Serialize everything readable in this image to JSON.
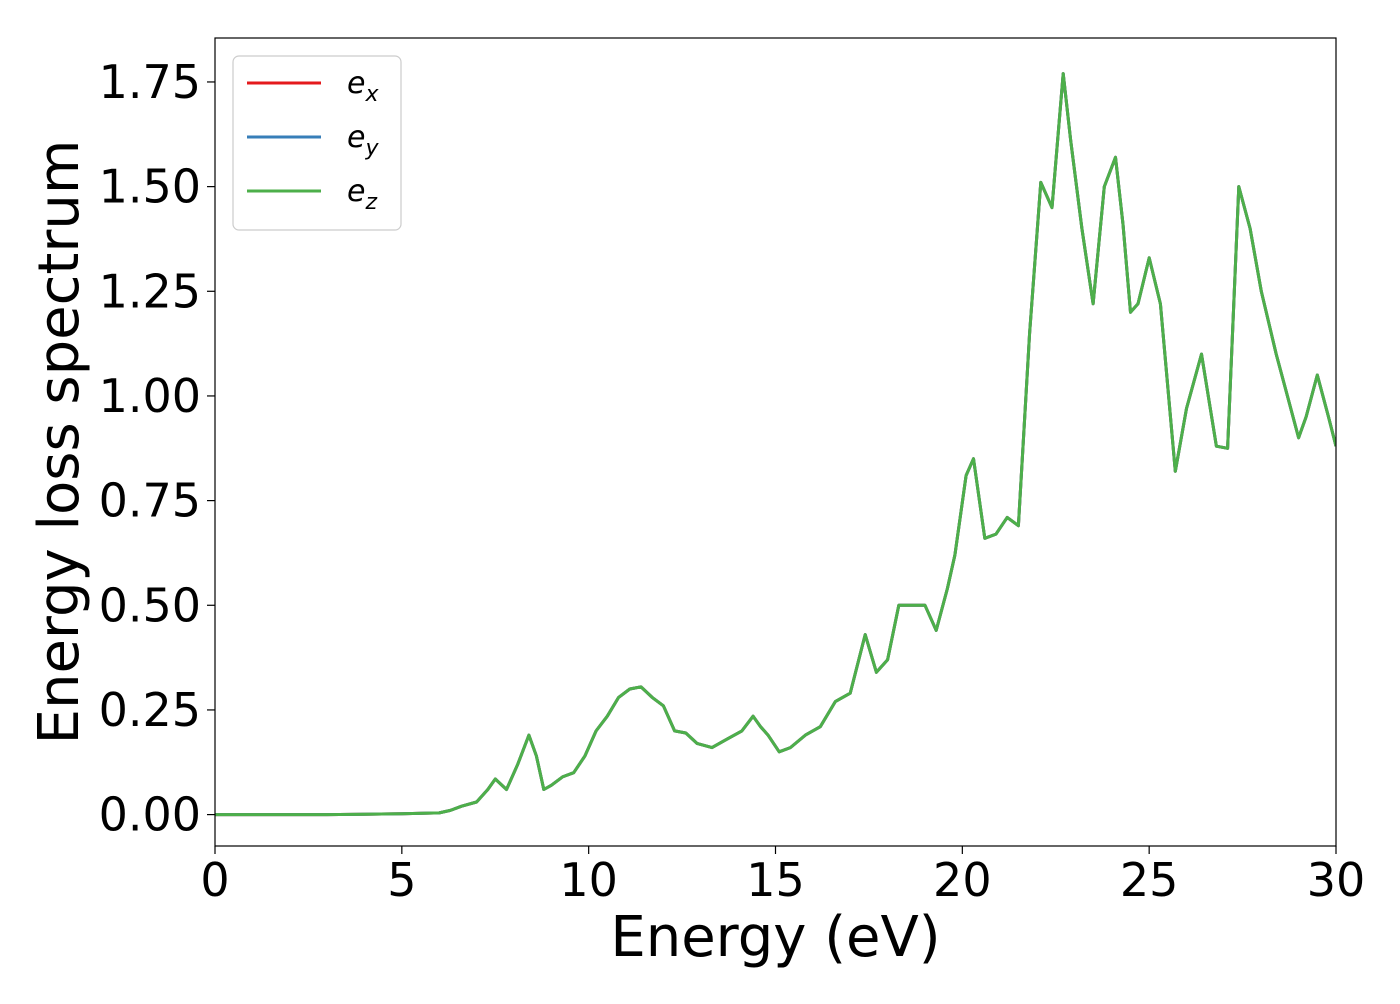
{
  "chart_data": {
    "type": "line",
    "title": "",
    "xlabel": "Energy (eV)",
    "ylabel": "Energy loss spectrum",
    "xlim": [
      0,
      30
    ],
    "ylim": [
      -0.075,
      1.855
    ],
    "xticks": [
      0,
      5,
      10,
      15,
      20,
      25,
      30
    ],
    "xtick_labels": [
      "0",
      "5",
      "10",
      "15",
      "20",
      "25",
      "30"
    ],
    "yticks": [
      0.0,
      0.25,
      0.5,
      0.75,
      1.0,
      1.25,
      1.5,
      1.75
    ],
    "ytick_labels": [
      "0.00",
      "0.25",
      "0.50",
      "0.75",
      "1.00",
      "1.25",
      "1.50",
      "1.75"
    ],
    "grid": false,
    "legend_position": "top-left",
    "x": [
      0,
      1,
      2,
      3,
      4,
      5,
      6,
      6.3,
      6.6,
      7.0,
      7.3,
      7.5,
      7.8,
      8.1,
      8.4,
      8.6,
      8.8,
      9.0,
      9.3,
      9.6,
      9.9,
      10.2,
      10.5,
      10.8,
      11.1,
      11.4,
      11.7,
      12.0,
      12.3,
      12.6,
      12.9,
      13.3,
      13.7,
      14.1,
      14.4,
      14.6,
      14.8,
      15.1,
      15.4,
      15.8,
      16.2,
      16.6,
      17.0,
      17.4,
      17.7,
      18.0,
      18.3,
      18.5,
      18.8,
      19.0,
      19.3,
      19.6,
      19.8,
      20.1,
      20.3,
      20.6,
      20.9,
      21.2,
      21.5,
      21.8,
      22.1,
      22.4,
      22.7,
      22.9,
      23.2,
      23.5,
      23.8,
      24.1,
      24.3,
      24.5,
      24.7,
      25.0,
      25.3,
      25.7,
      26.0,
      26.4,
      26.8,
      27.1,
      27.4,
      27.7,
      28.0,
      28.4,
      28.7,
      29.0,
      29.2,
      29.5,
      29.8,
      30.0
    ],
    "series": [
      {
        "name": "e_x",
        "label_main": "e",
        "label_sub": "x",
        "color": "#e41a1c",
        "values": [
          0,
          0,
          0,
          0,
          0.001,
          0.002,
          0.004,
          0.01,
          0.02,
          0.03,
          0.06,
          0.085,
          0.06,
          0.12,
          0.19,
          0.14,
          0.06,
          0.07,
          0.09,
          0.1,
          0.14,
          0.2,
          0.235,
          0.28,
          0.3,
          0.305,
          0.28,
          0.26,
          0.2,
          0.195,
          0.17,
          0.16,
          0.18,
          0.2,
          0.235,
          0.21,
          0.19,
          0.15,
          0.16,
          0.19,
          0.21,
          0.27,
          0.29,
          0.43,
          0.34,
          0.37,
          0.5,
          0.5,
          0.5,
          0.5,
          0.44,
          0.54,
          0.62,
          0.81,
          0.85,
          0.66,
          0.67,
          0.71,
          0.69,
          1.15,
          1.51,
          1.45,
          1.77,
          1.61,
          1.4,
          1.22,
          1.5,
          1.57,
          1.41,
          1.2,
          1.22,
          1.33,
          1.22,
          0.82,
          0.97,
          1.1,
          0.88,
          0.875,
          1.5,
          1.4,
          1.25,
          1.1,
          1.0,
          0.9,
          0.95,
          1.05,
          0.95,
          0.88
        ]
      },
      {
        "name": "e_y",
        "label_main": "e",
        "label_sub": "y",
        "color": "#377eb8",
        "values": [
          0,
          0,
          0,
          0,
          0.001,
          0.002,
          0.004,
          0.01,
          0.02,
          0.03,
          0.06,
          0.085,
          0.06,
          0.12,
          0.19,
          0.14,
          0.06,
          0.07,
          0.09,
          0.1,
          0.14,
          0.2,
          0.235,
          0.28,
          0.3,
          0.305,
          0.28,
          0.26,
          0.2,
          0.195,
          0.17,
          0.16,
          0.18,
          0.2,
          0.235,
          0.21,
          0.19,
          0.15,
          0.16,
          0.19,
          0.21,
          0.27,
          0.29,
          0.43,
          0.34,
          0.37,
          0.5,
          0.5,
          0.5,
          0.5,
          0.44,
          0.54,
          0.62,
          0.81,
          0.85,
          0.66,
          0.67,
          0.71,
          0.69,
          1.15,
          1.51,
          1.45,
          1.77,
          1.61,
          1.4,
          1.22,
          1.5,
          1.57,
          1.41,
          1.2,
          1.22,
          1.33,
          1.22,
          0.82,
          0.97,
          1.1,
          0.88,
          0.875,
          1.5,
          1.4,
          1.25,
          1.1,
          1.0,
          0.9,
          0.95,
          1.05,
          0.95,
          0.88
        ]
      },
      {
        "name": "e_z",
        "label_main": "e",
        "label_sub": "z",
        "color": "#4daf4a",
        "values": [
          0,
          0,
          0,
          0,
          0.001,
          0.002,
          0.004,
          0.01,
          0.02,
          0.03,
          0.06,
          0.085,
          0.06,
          0.12,
          0.19,
          0.14,
          0.06,
          0.07,
          0.09,
          0.1,
          0.14,
          0.2,
          0.235,
          0.28,
          0.3,
          0.305,
          0.28,
          0.26,
          0.2,
          0.195,
          0.17,
          0.16,
          0.18,
          0.2,
          0.235,
          0.21,
          0.19,
          0.15,
          0.16,
          0.19,
          0.21,
          0.27,
          0.29,
          0.43,
          0.34,
          0.37,
          0.5,
          0.5,
          0.5,
          0.5,
          0.44,
          0.54,
          0.62,
          0.81,
          0.85,
          0.66,
          0.67,
          0.71,
          0.69,
          1.15,
          1.51,
          1.45,
          1.77,
          1.61,
          1.4,
          1.22,
          1.5,
          1.57,
          1.41,
          1.2,
          1.22,
          1.33,
          1.22,
          0.82,
          0.97,
          1.1,
          0.88,
          0.875,
          1.5,
          1.4,
          1.25,
          1.1,
          1.0,
          0.9,
          0.95,
          1.05,
          0.95,
          0.88
        ]
      }
    ]
  }
}
